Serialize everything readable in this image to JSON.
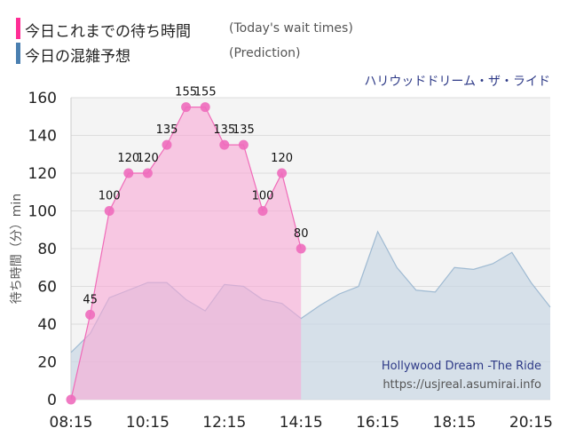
{
  "legend": {
    "today_label": "今日これまでの待ち時間",
    "today_sub": "(Today's wait times)",
    "prediction_label": "今日の混雑予想",
    "prediction_sub": "(Prediction)"
  },
  "colors": {
    "today": "#ff2d95",
    "prediction": "#4a7fb0",
    "today_fill": "#f9a9d6",
    "prediction_fill": "#c9d7e4"
  },
  "ride_name": "ハリウッドドリーム・ザ・ライド",
  "credit_title": "Hollywood Dream -The Ride",
  "credit_url": "https://usjreal.asumirai.info",
  "chart_data": {
    "type": "area",
    "ylabel": "待ち時間（分）min",
    "ylim": [
      0,
      160
    ],
    "y_ticks": [
      "0",
      "20",
      "40",
      "60",
      "80",
      "100",
      "120",
      "140",
      "160"
    ],
    "x_ticks": [
      "08:15",
      "10:15",
      "12:15",
      "14:15",
      "16:15",
      "18:15",
      "20:15"
    ],
    "grid": true,
    "series": [
      {
        "name": "今日これまでの待ち時間",
        "x": [
          "08:15",
          "08:45",
          "09:15",
          "09:45",
          "10:15",
          "10:45",
          "11:15",
          "11:45",
          "12:15",
          "12:45",
          "13:15",
          "13:45",
          "14:15"
        ],
        "values": [
          0,
          45,
          100,
          120,
          120,
          135,
          155,
          155,
          135,
          135,
          100,
          120,
          80
        ]
      },
      {
        "name": "今日の混雑予想",
        "x": [
          "08:15",
          "08:45",
          "09:15",
          "09:45",
          "10:15",
          "10:45",
          "11:15",
          "11:45",
          "12:15",
          "12:45",
          "13:15",
          "13:45",
          "14:15",
          "14:45",
          "15:15",
          "15:45",
          "16:15",
          "16:45",
          "17:15",
          "17:45",
          "18:15",
          "18:45",
          "19:15",
          "19:45",
          "20:15",
          "20:45"
        ],
        "values": [
          25,
          35,
          54,
          58,
          62,
          62,
          53,
          47,
          61,
          60,
          53,
          51,
          43,
          50,
          56,
          60,
          89,
          70,
          58,
          57,
          70,
          69,
          72,
          78,
          62,
          49
        ]
      }
    ]
  }
}
